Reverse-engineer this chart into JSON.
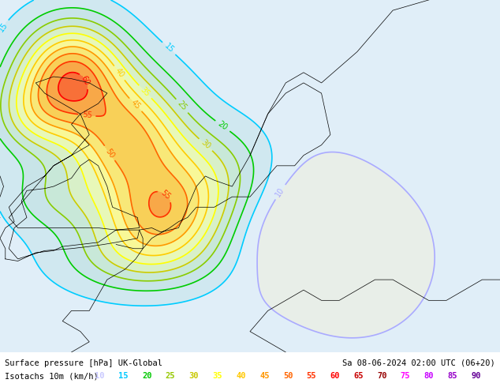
{
  "title_left": "Surface pressure [hPa] UK-Global",
  "title_right": "Sa 08-06-2024 02:00 UTC (06+20)",
  "subtitle_left": "Isotachs 10m (km/h)",
  "legend_values": [
    10,
    15,
    20,
    25,
    30,
    35,
    40,
    45,
    50,
    55,
    60,
    65,
    70,
    75,
    80,
    85,
    90
  ],
  "legend_colors": [
    "#c8c8ff",
    "#00c8ff",
    "#00c800",
    "#96c800",
    "#c8c800",
    "#ffff00",
    "#ffc800",
    "#ff9600",
    "#ff6400",
    "#ff3200",
    "#ff0000",
    "#c80000",
    "#960000",
    "#ff00ff",
    "#c800ff",
    "#9600c8",
    "#640096"
  ],
  "contour_colors": [
    "#aaaaff",
    "#00ccff",
    "#00cc00",
    "#88cc00",
    "#cccc00",
    "#ffff00",
    "#ffcc00",
    "#ff9900",
    "#ff6600",
    "#ff3300",
    "#ff0000",
    "#cc0000",
    "#990000",
    "#ff00ff",
    "#cc00ff",
    "#9900cc",
    "#660099"
  ],
  "levels": [
    10,
    15,
    20,
    25,
    30,
    35,
    40,
    45,
    50,
    55,
    60,
    65,
    70,
    75,
    80,
    85,
    90
  ],
  "bg_color": "#c8d8c0",
  "fig_bg_color": "#b8c8b0",
  "fig_width": 6.34,
  "fig_height": 4.9,
  "dpi": 100
}
